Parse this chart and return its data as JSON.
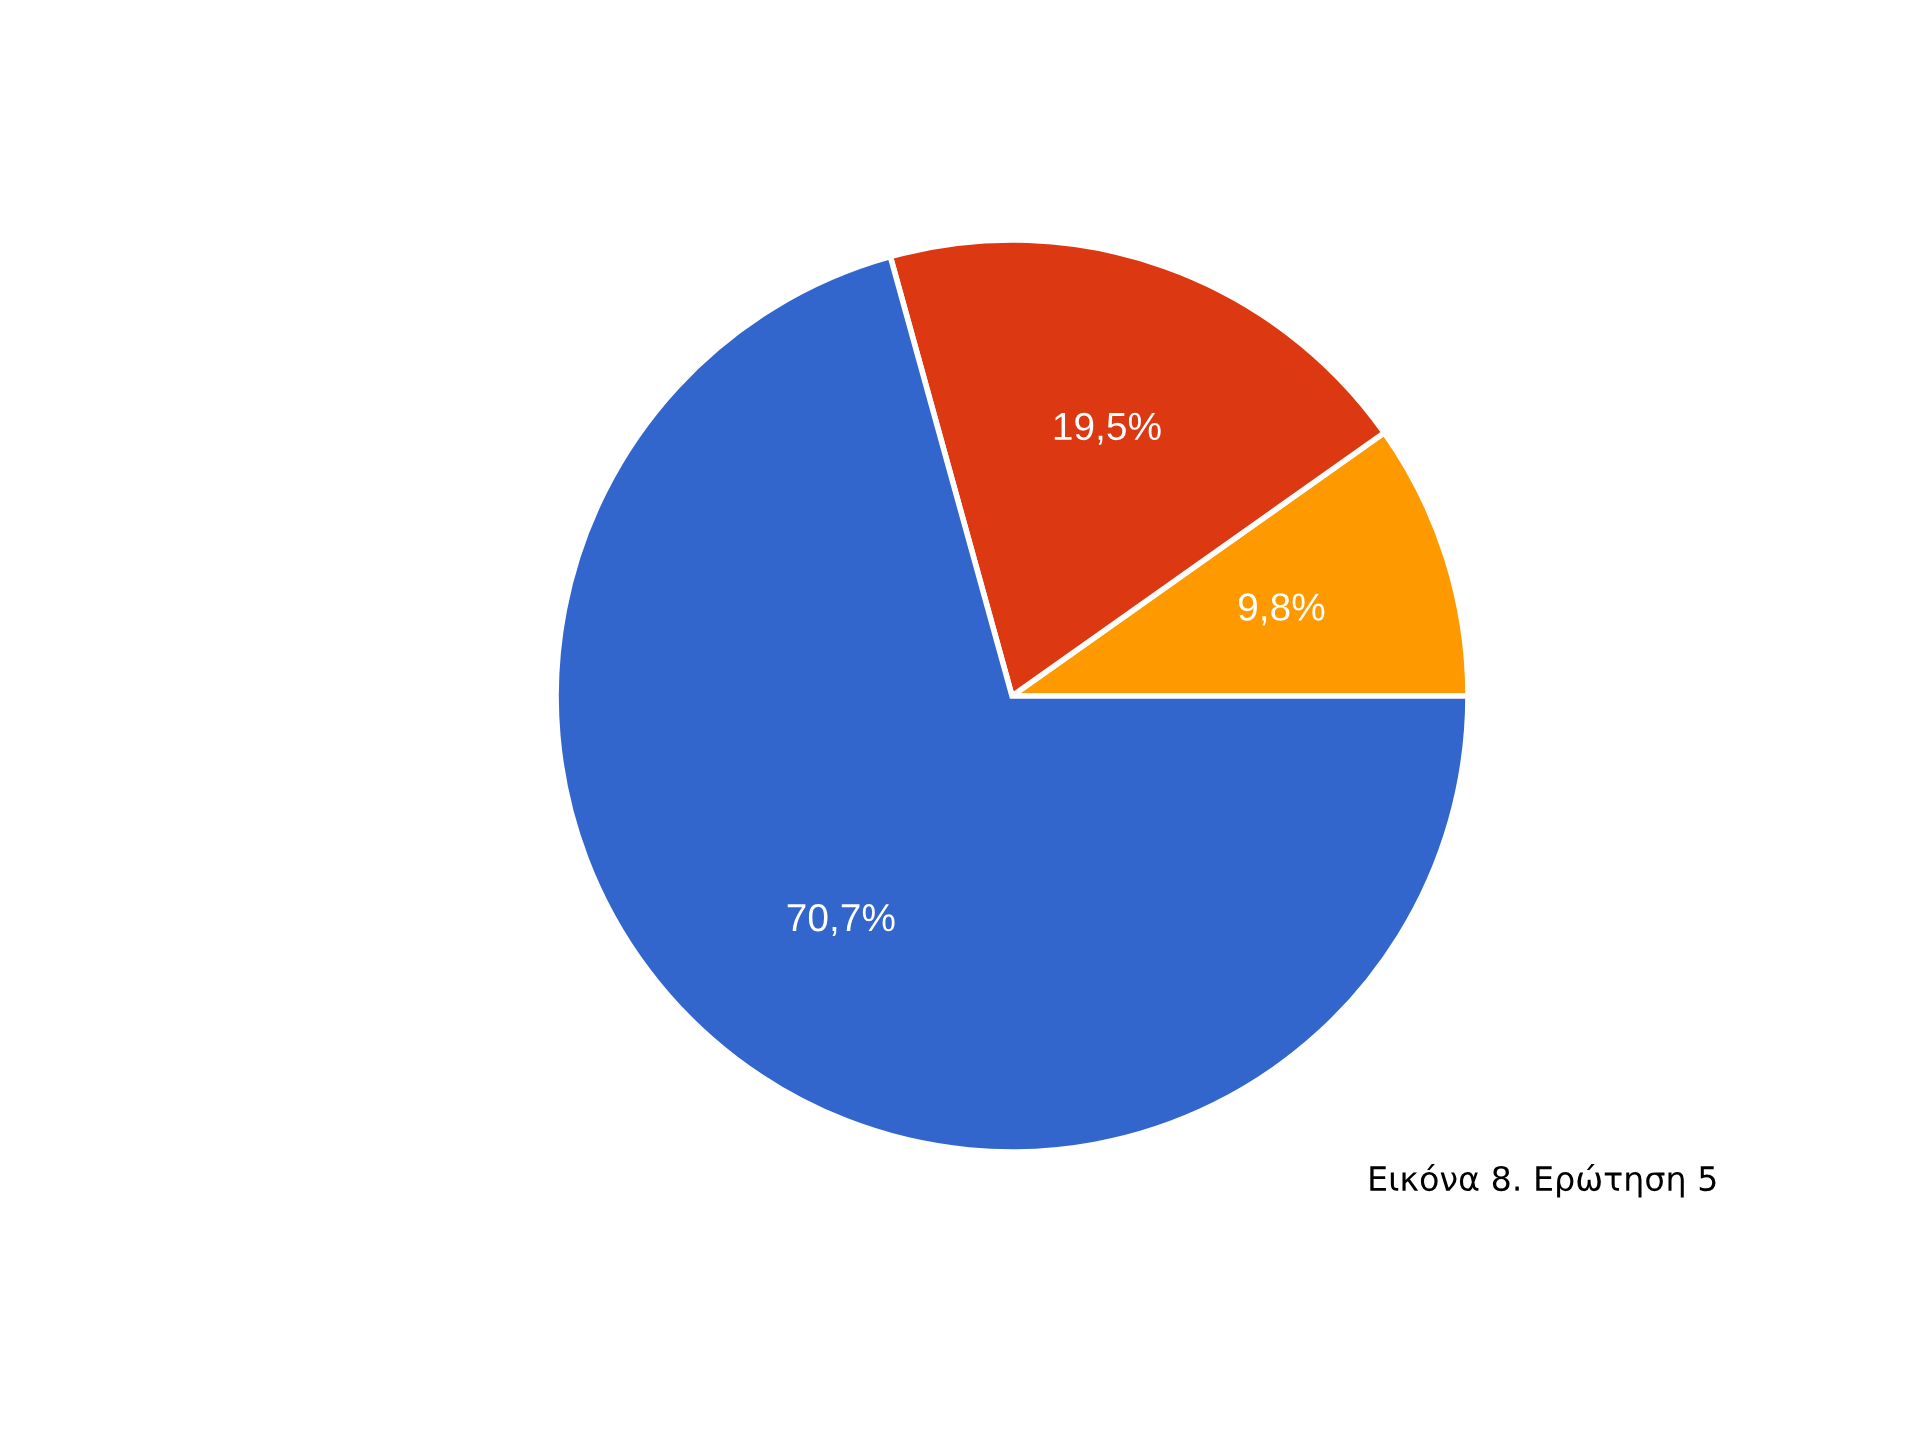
{
  "chart_data": {
    "type": "pie",
    "categories": [
      null,
      null,
      null
    ],
    "values": [
      9.8,
      19.5,
      70.7
    ],
    "colors": [
      "#ff9900",
      "#dc3912",
      "#3366cc"
    ],
    "value_labels": [
      "9,8%",
      "19,5%",
      "70,7%"
    ],
    "annotations": [
      "Εικόνα 8. Ερώτηση 5"
    ]
  }
}
